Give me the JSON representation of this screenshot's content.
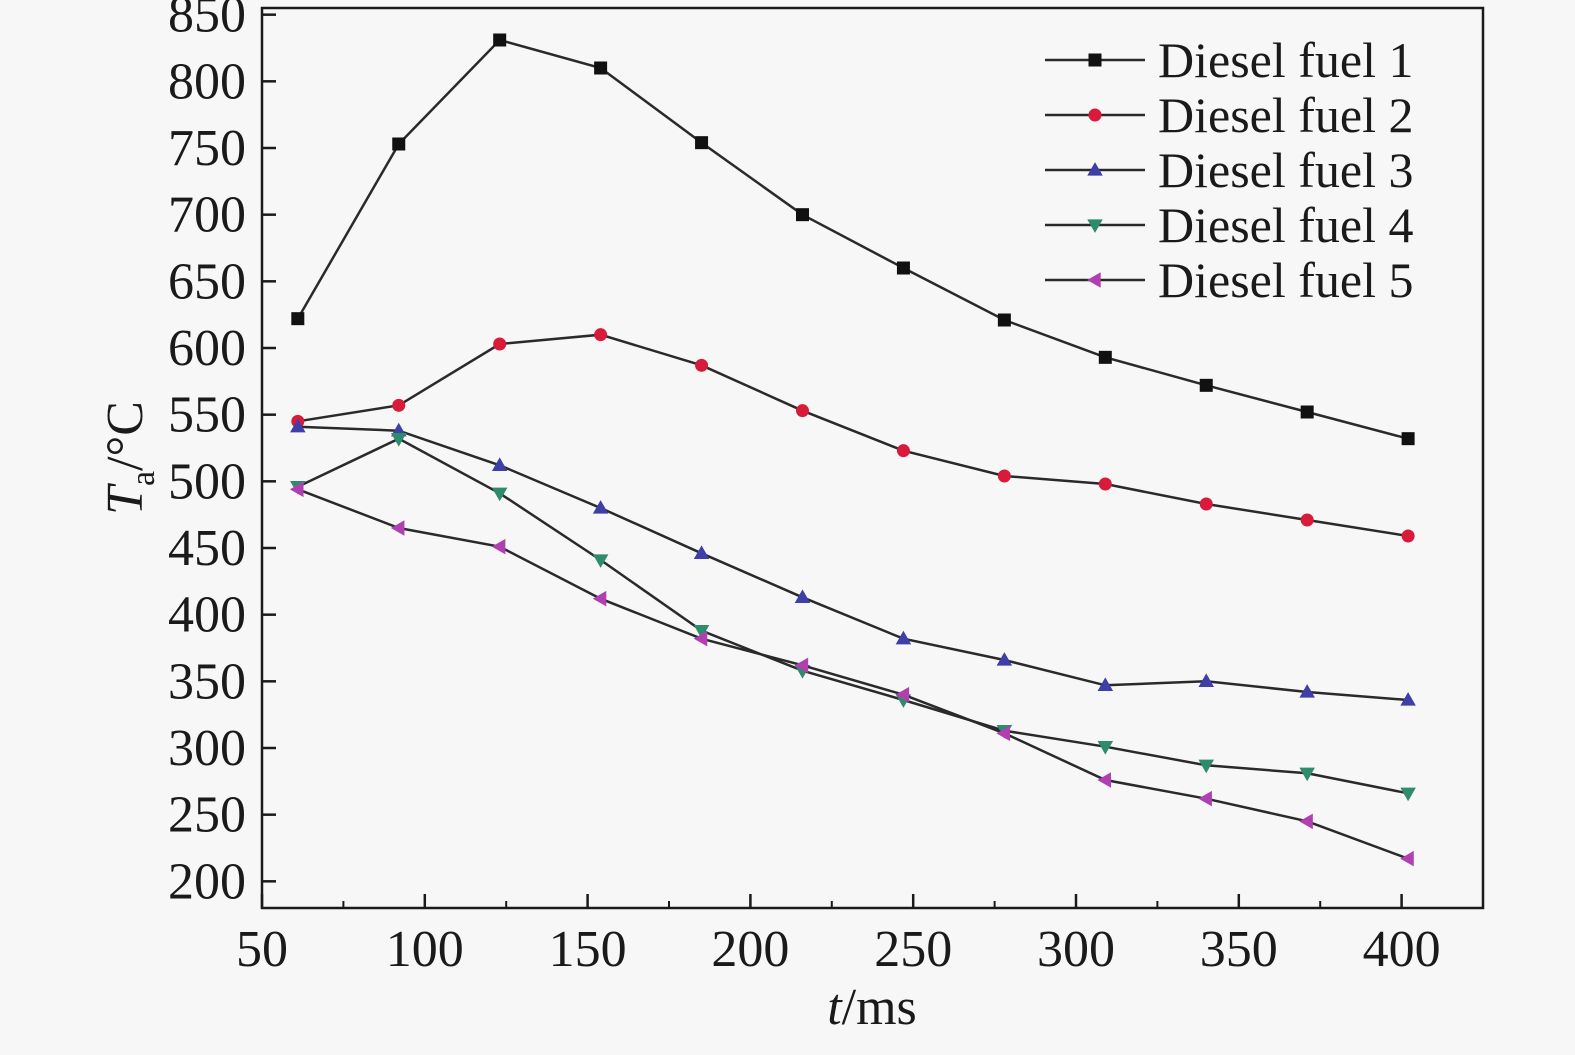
{
  "chart_data": {
    "type": "line",
    "title": "",
    "xlabel": {
      "var": "t",
      "unit": "/ms"
    },
    "ylabel": {
      "var": "T",
      "sub": "a",
      "unit": "/°C"
    },
    "xlim": [
      50,
      425
    ],
    "ylim": [
      180,
      855
    ],
    "xticks": [
      50,
      100,
      150,
      200,
      250,
      300,
      350,
      400
    ],
    "yticks": [
      200,
      250,
      300,
      350,
      400,
      450,
      500,
      550,
      600,
      650,
      700,
      750,
      800,
      850
    ],
    "grid": false,
    "legend_position": "top-right",
    "x": [
      61,
      92,
      123,
      154,
      185,
      216,
      247,
      278,
      309,
      340,
      371,
      402
    ],
    "series": [
      {
        "name": "Diesel fuel 1",
        "color": "#111111",
        "marker": "square",
        "values": [
          622,
          753,
          831,
          810,
          754,
          700,
          660,
          621,
          593,
          572,
          552,
          532
        ]
      },
      {
        "name": "Diesel fuel 2",
        "color": "#d81b3a",
        "marker": "circle",
        "values": [
          545,
          557,
          603,
          610,
          587,
          553,
          523,
          504,
          498,
          483,
          471,
          459
        ]
      },
      {
        "name": "Diesel fuel 3",
        "color": "#3f3fa8",
        "marker": "triangle-up",
        "values": [
          541,
          538,
          512,
          480,
          446,
          413,
          382,
          366,
          347,
          350,
          342,
          336
        ]
      },
      {
        "name": "Diesel fuel 4",
        "color": "#2e8b6e",
        "marker": "triangle-down",
        "values": [
          496,
          532,
          491,
          441,
          388,
          358,
          336,
          313,
          301,
          287,
          281,
          266
        ]
      },
      {
        "name": "Diesel fuel 5",
        "color": "#b040b0",
        "marker": "triangle-left",
        "values": [
          494,
          465,
          451,
          412,
          382,
          362,
          340,
          311,
          276,
          262,
          245,
          217
        ]
      }
    ]
  }
}
